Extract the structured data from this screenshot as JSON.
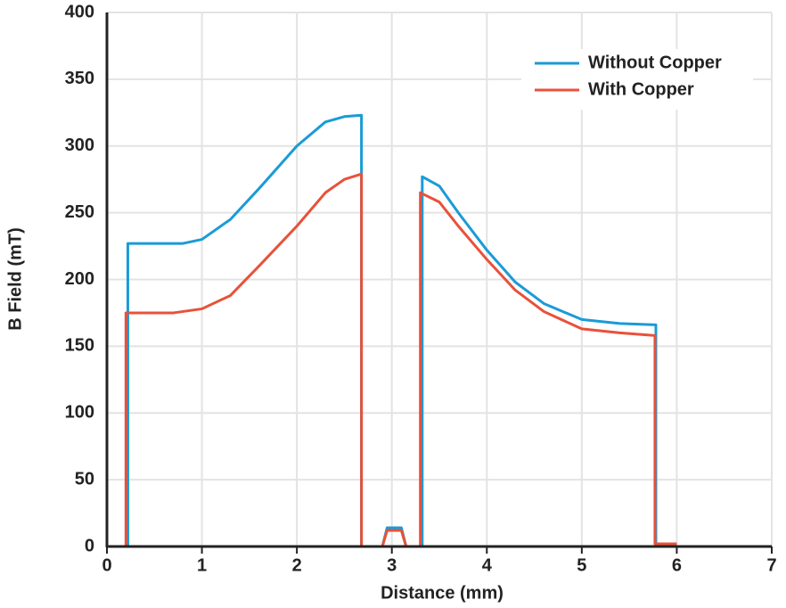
{
  "chart_data": {
    "type": "line",
    "x_label": "Distance (mm)",
    "y_label": "B Field (mT)",
    "xlim": [
      0,
      7
    ],
    "xticks": [
      0,
      1,
      2,
      3,
      4,
      5,
      6,
      7
    ],
    "ylim": [
      0,
      400
    ],
    "yticks": [
      0,
      50,
      100,
      150,
      200,
      250,
      300,
      350,
      400
    ],
    "grid": true,
    "legend": "upper right",
    "series": [
      {
        "name": "Without Copper",
        "color": "#1a9bd7",
        "x": [
          0.22,
          0.22,
          0.8,
          1.0,
          1.3,
          1.6,
          2.0,
          2.3,
          2.5,
          2.68,
          2.68,
          2.9,
          2.95,
          3.1,
          3.15,
          3.32,
          3.32,
          3.5,
          3.7,
          4.0,
          4.3,
          4.6,
          5.0,
          5.4,
          5.78,
          5.78
        ],
        "values": [
          0,
          227,
          227,
          230,
          245,
          268,
          300,
          318,
          322,
          323,
          0,
          0,
          14,
          14,
          0,
          0,
          277,
          270,
          250,
          222,
          198,
          182,
          170,
          167,
          166,
          0
        ]
      },
      {
        "name": "With Copper",
        "color": "#e8513a",
        "x": [
          0.2,
          0.2,
          0.7,
          1.0,
          1.3,
          1.6,
          2.0,
          2.3,
          2.5,
          2.68,
          2.68,
          2.9,
          2.95,
          3.1,
          3.15,
          3.3,
          3.3,
          3.5,
          3.7,
          4.0,
          4.3,
          4.6,
          5.0,
          5.4,
          5.77,
          5.77,
          6.0
        ],
        "values": [
          0,
          175,
          175,
          178,
          188,
          210,
          240,
          265,
          275,
          279,
          0,
          0,
          12,
          12,
          0,
          0,
          265,
          258,
          240,
          215,
          192,
          176,
          163,
          160,
          158,
          2,
          2
        ]
      }
    ]
  }
}
